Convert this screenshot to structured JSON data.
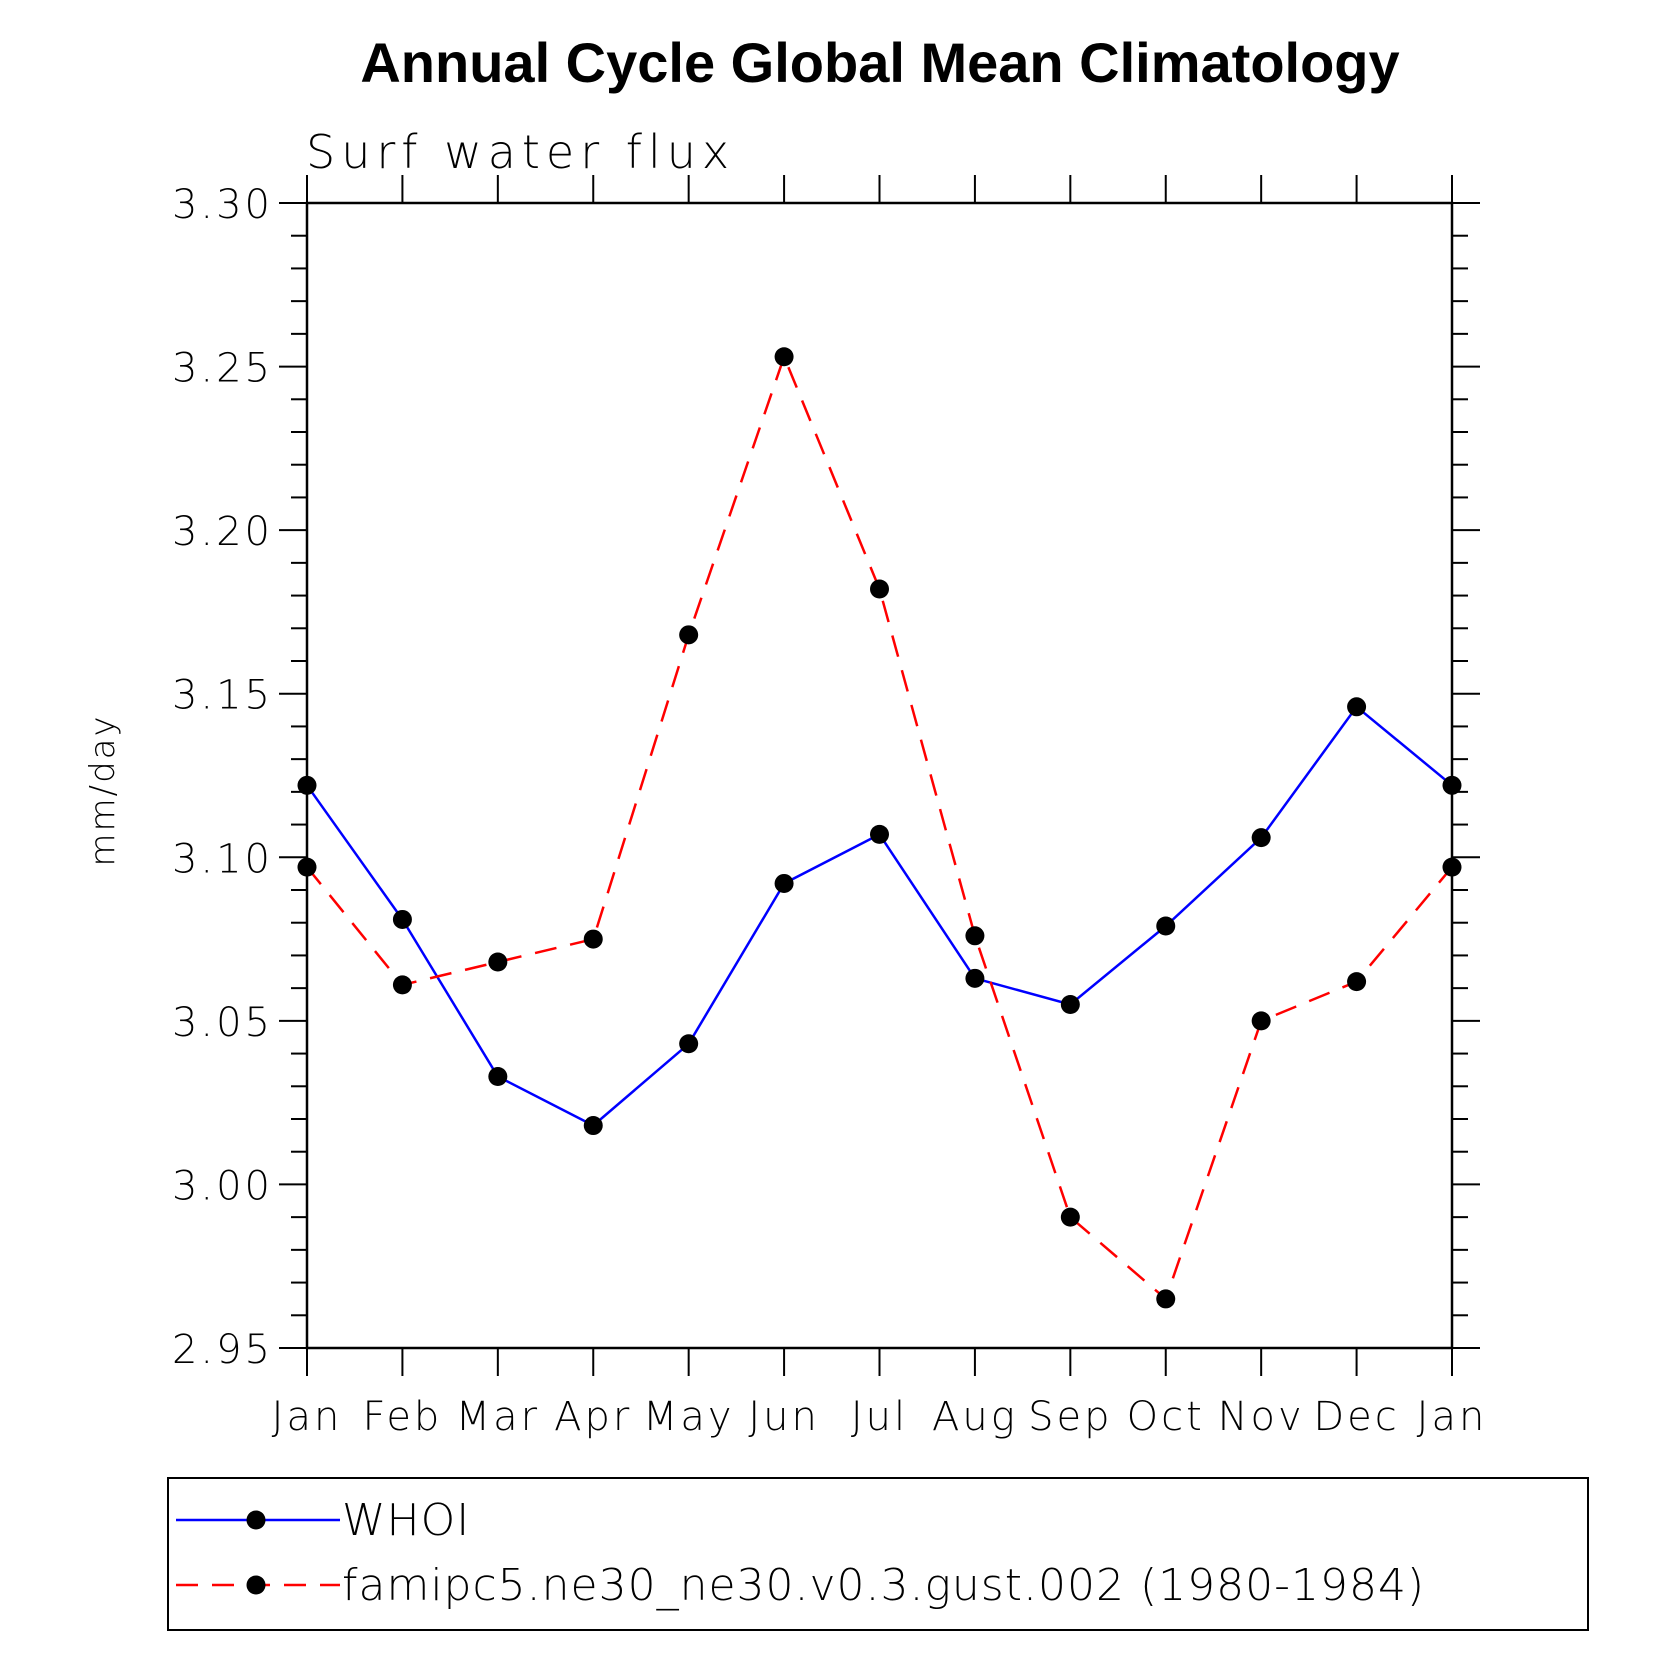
{
  "chart_data": {
    "type": "line",
    "title": "Annual Cycle Global Mean Climatology",
    "subtitle": "Surf water flux",
    "xlabel": "",
    "ylabel": "mm/day",
    "categories": [
      "Jan",
      "Feb",
      "Mar",
      "Apr",
      "May",
      "Jun",
      "Jul",
      "Aug",
      "Sep",
      "Oct",
      "Nov",
      "Dec",
      "Jan"
    ],
    "ylim": [
      2.95,
      3.3
    ],
    "yticks": [
      "3.30",
      "3.25",
      "3.20",
      "3.15",
      "3.10",
      "3.05",
      "3.00",
      "2.95"
    ],
    "yticks_values": [
      3.3,
      3.25,
      3.2,
      3.15,
      3.1,
      3.05,
      3.0,
      2.95
    ],
    "grid": false,
    "legend_position": "bottom",
    "series": [
      {
        "name": "WHOI",
        "color": "#0000ff",
        "dash": "solid",
        "marker": "filled-circle",
        "values": [
          3.122,
          3.081,
          3.033,
          3.018,
          3.043,
          3.092,
          3.107,
          3.063,
          3.055,
          3.079,
          3.106,
          3.146,
          3.122
        ]
      },
      {
        "name": "famipc5.ne30_ne30.v0.3.gust.002 (1980-1984)",
        "color": "#ff0000",
        "dash": "dashed",
        "marker": "filled-circle",
        "values": [
          3.097,
          3.061,
          3.068,
          3.075,
          3.168,
          3.253,
          3.182,
          3.076,
          2.99,
          2.965,
          3.05,
          3.062,
          3.097
        ]
      }
    ]
  }
}
